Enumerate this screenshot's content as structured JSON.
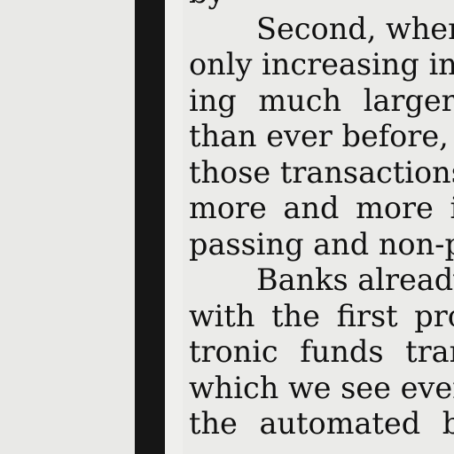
{
  "document": {
    "lines": [
      "by",
      "Second, when",
      "only increasing in",
      "ing much larger",
      "than ever before, e",
      "those transactions",
      "more and more in",
      "passing and non-p",
      "Banks already",
      "with the first pro",
      "tronic funds tran",
      "which we see ever",
      "the automated b"
    ]
  }
}
